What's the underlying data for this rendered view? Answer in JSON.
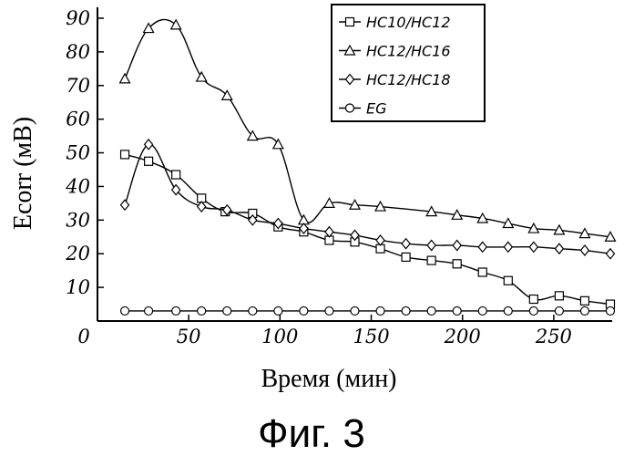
{
  "chart_data": {
    "type": "line",
    "title": "",
    "caption": "Фиг. 3",
    "xlabel": "Время (мин)",
    "ylabel": "Ecorr (мВ)",
    "xlim": [
      0,
      282
    ],
    "ylim": [
      0,
      90
    ],
    "x_origin_label": "0",
    "xticks": [
      50,
      100,
      150,
      200,
      250
    ],
    "yticks": [
      10,
      20,
      30,
      40,
      50,
      60,
      70,
      80,
      90
    ],
    "grid": false,
    "legend_position": "top-right",
    "series": [
      {
        "name": "HC10/HC12",
        "marker": "square",
        "x": [
          15,
          28,
          43,
          57,
          70,
          85,
          99,
          113,
          127,
          141,
          155,
          169,
          183,
          197,
          211,
          225,
          239,
          253,
          267,
          281
        ],
        "y": [
          49.5,
          47.5,
          43.5,
          36.5,
          32.5,
          32,
          28,
          26.5,
          24,
          23.5,
          21.5,
          19,
          18,
          17,
          14.5,
          12,
          6.5,
          7.5,
          6,
          5
        ]
      },
      {
        "name": "HC12/HC16",
        "marker": "triangle",
        "x": [
          15,
          28,
          43,
          57,
          71,
          85,
          99,
          113,
          127,
          141,
          155,
          183,
          197,
          211,
          225,
          239,
          253,
          267,
          281
        ],
        "y": [
          72,
          87,
          88,
          72.5,
          67,
          55,
          52.5,
          30,
          35,
          34.5,
          34,
          32.5,
          31.5,
          30.5,
          29,
          27.5,
          27,
          26,
          25
        ]
      },
      {
        "name": "HC12/HC18",
        "marker": "diamond",
        "x": [
          15,
          28,
          43,
          57,
          71,
          85,
          99,
          113,
          127,
          141,
          155,
          169,
          183,
          197,
          211,
          225,
          239,
          253,
          267,
          281
        ],
        "y": [
          34.5,
          52.5,
          39,
          34,
          33,
          30,
          29,
          27.5,
          26.5,
          25.5,
          24,
          23,
          22.5,
          22.5,
          22,
          22,
          22,
          21.5,
          21,
          20
        ]
      },
      {
        "name": "EG",
        "marker": "circle",
        "x": [
          15,
          28,
          43,
          57,
          71,
          85,
          99,
          113,
          127,
          141,
          155,
          169,
          183,
          197,
          211,
          225,
          239,
          253,
          267,
          281
        ],
        "y": [
          3,
          3,
          3,
          3,
          3,
          3,
          3,
          3,
          3,
          3,
          3,
          3,
          3,
          3,
          3,
          3,
          3,
          3,
          3,
          3
        ]
      }
    ]
  }
}
